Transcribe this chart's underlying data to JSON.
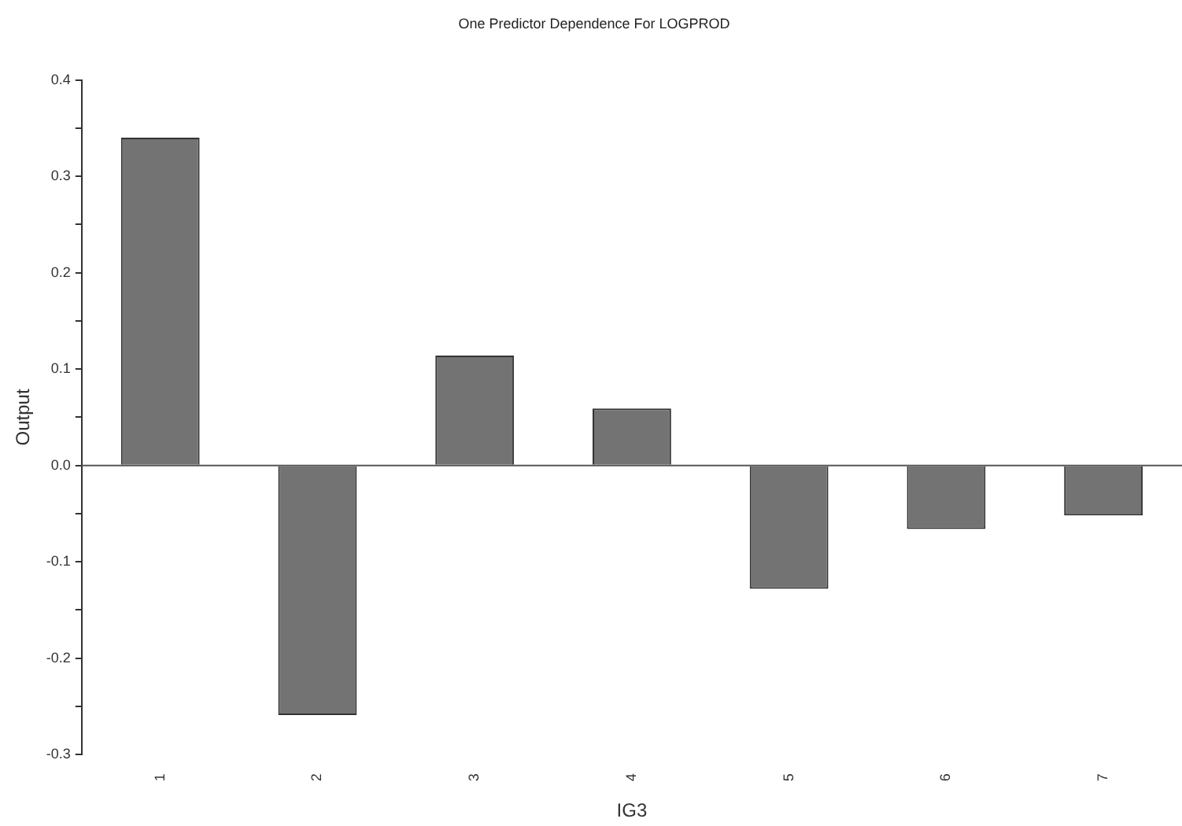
{
  "chart_data": {
    "type": "bar",
    "title": "One Predictor Dependence For LOGPROD",
    "xlabel": "IG3",
    "ylabel": "Output",
    "categories": [
      "1",
      "2",
      "3",
      "4",
      "5",
      "6",
      "7"
    ],
    "values": [
      0.34,
      -0.259,
      0.114,
      0.059,
      -0.128,
      -0.066,
      -0.052
    ],
    "color": "#737373",
    "ylim": [
      -0.3,
      0.4
    ],
    "yticks": [
      -0.3,
      {
        "value": -0.25,
        "label": null
      },
      -0.2,
      {
        "value": -0.15,
        "label": null
      },
      -0.1,
      {
        "value": -0.05,
        "label": null
      },
      {
        "value": 0,
        "label": "0.0"
      },
      {
        "value": 0.05,
        "label": null
      },
      0.1,
      {
        "value": 0.15,
        "label": null
      },
      0.2,
      {
        "value": 0.25,
        "label": null
      },
      0.3,
      {
        "value": 0.35,
        "label": null
      },
      0.4
    ],
    "ref_lines": [
      {
        "axis": "y",
        "value": 0,
        "color": "#555555"
      }
    ],
    "grid": false,
    "legend": false
  }
}
